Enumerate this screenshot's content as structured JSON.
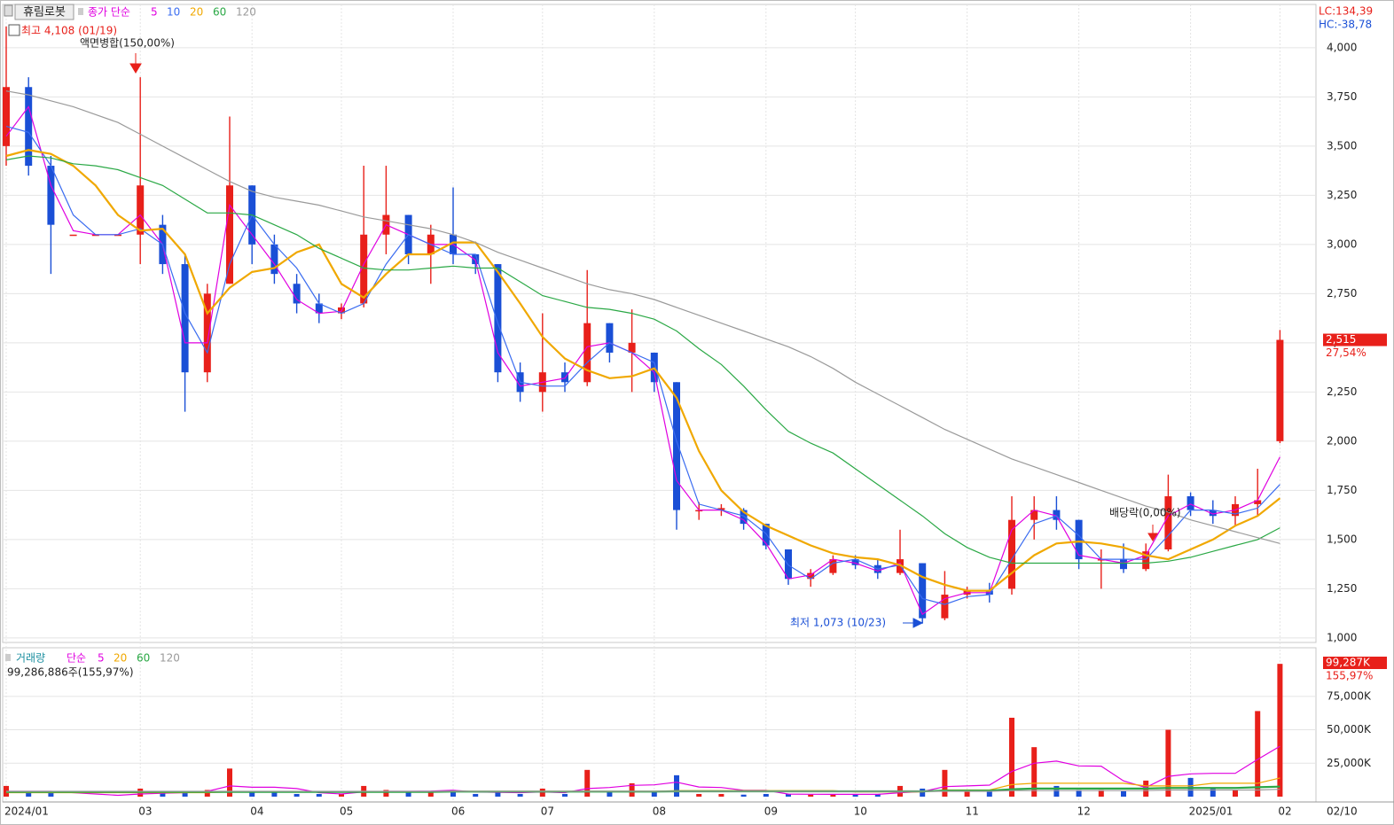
{
  "chart_data": [
    {
      "type": "candlestick",
      "title": "휴림로봇",
      "legend_label": "종가 단순",
      "open": [
        3500,
        3800,
        3400,
        3050,
        3050,
        3050,
        3050,
        3100,
        2900,
        2350,
        2800,
        3300,
        3000,
        2800,
        2700,
        2650,
        2700,
        3050,
        3150,
        2950,
        3050,
        2950,
        2900,
        2350,
        2250,
        2350,
        2300,
        2600,
        2450,
        2450,
        2300,
        1650,
        1650,
        1650,
        1580,
        1450,
        1300,
        1330,
        1400,
        1370,
        1330,
        1380,
        1100,
        1220,
        1240,
        1250,
        1600,
        1650,
        1600,
        1400,
        1400,
        1350,
        1450,
        1720,
        1650,
        1620,
        1680,
        2000
      ],
      "high": [
        4108,
        3850,
        3450,
        3050,
        3050,
        3050,
        3850,
        3150,
        2950,
        2800,
        3650,
        3300,
        3050,
        2850,
        2750,
        2700,
        3400,
        3400,
        3150,
        3100,
        3290,
        2950,
        2900,
        2400,
        2650,
        2400,
        2870,
        2600,
        2670,
        2450,
        2300,
        1690,
        1680,
        1660,
        1580,
        1450,
        1350,
        1420,
        1420,
        1400,
        1550,
        1380,
        1340,
        1260,
        1280,
        1720,
        1720,
        1720,
        1600,
        1450,
        1480,
        1480,
        1830,
        1740,
        1700,
        1720,
        1860,
        2565
      ],
      "low": [
        3400,
        3350,
        2850,
        3050,
        3050,
        3050,
        2900,
        2850,
        2150,
        2300,
        2800,
        2900,
        2800,
        2650,
        2600,
        2620,
        2680,
        2950,
        2900,
        2800,
        2900,
        2850,
        2300,
        2200,
        2150,
        2250,
        2280,
        2400,
        2250,
        2250,
        1550,
        1600,
        1620,
        1550,
        1450,
        1270,
        1260,
        1320,
        1350,
        1300,
        1320,
        1073,
        1090,
        1200,
        1180,
        1220,
        1500,
        1550,
        1350,
        1250,
        1330,
        1340,
        1440,
        1620,
        1580,
        1570,
        1620,
        1990
      ],
      "close": [
        3800,
        3400,
        3100,
        3050,
        3050,
        3050,
        3300,
        2900,
        2350,
        2750,
        3300,
        3000,
        2850,
        2700,
        2650,
        2680,
        3050,
        3150,
        2950,
        3050,
        2950,
        2900,
        2350,
        2250,
        2350,
        2300,
        2600,
        2450,
        2500,
        2300,
        1650,
        1650,
        1660,
        1580,
        1470,
        1300,
        1330,
        1400,
        1370,
        1330,
        1400,
        1100,
        1220,
        1240,
        1220,
        1600,
        1650,
        1600,
        1400,
        1400,
        1350,
        1440,
        1720,
        1650,
        1620,
        1680,
        1700,
        2515
      ],
      "up_color": "#e8201a",
      "down_color": "#1a4fd6",
      "series": [
        {
          "name": "5",
          "color": "#e000e0",
          "values": [
            3550,
            3700,
            3300,
            3070,
            3050,
            3050,
            3150,
            3000,
            2500,
            2500,
            3200,
            3050,
            2900,
            2720,
            2650,
            2660,
            2900,
            3100,
            3050,
            3000,
            3000,
            2920,
            2450,
            2280,
            2300,
            2320,
            2480,
            2500,
            2450,
            2350,
            1800,
            1650,
            1650,
            1600,
            1480,
            1300,
            1320,
            1400,
            1380,
            1340,
            1380,
            1120,
            1200,
            1230,
            1230,
            1550,
            1650,
            1620,
            1420,
            1400,
            1380,
            1420,
            1620,
            1680,
            1630,
            1650,
            1700,
            1920
          ]
        },
        {
          "name": "10",
          "color": "#3a6cf0",
          "values": [
            3600,
            3570,
            3400,
            3150,
            3050,
            3050,
            3080,
            3000,
            2650,
            2450,
            2900,
            3150,
            3000,
            2880,
            2700,
            2650,
            2700,
            2900,
            3050,
            3000,
            2950,
            2950,
            2600,
            2300,
            2280,
            2280,
            2400,
            2500,
            2450,
            2400,
            2000,
            1680,
            1650,
            1620,
            1530,
            1370,
            1300,
            1380,
            1400,
            1350,
            1370,
            1200,
            1170,
            1210,
            1220,
            1400,
            1580,
            1620,
            1520,
            1400,
            1400,
            1400,
            1520,
            1650,
            1650,
            1630,
            1660,
            1780
          ]
        },
        {
          "name": "20",
          "color": "#f0a800",
          "values": [
            3450,
            3480,
            3460,
            3400,
            3300,
            3150,
            3070,
            3080,
            2950,
            2650,
            2780,
            2860,
            2880,
            2960,
            3000,
            2800,
            2730,
            2850,
            2950,
            2950,
            3010,
            3010,
            2860,
            2700,
            2530,
            2420,
            2360,
            2320,
            2330,
            2370,
            2220,
            1950,
            1750,
            1640,
            1570,
            1520,
            1470,
            1430,
            1410,
            1400,
            1370,
            1310,
            1270,
            1240,
            1240,
            1330,
            1420,
            1480,
            1490,
            1480,
            1460,
            1420,
            1400,
            1450,
            1500,
            1570,
            1620,
            1710
          ]
        },
        {
          "name": "60",
          "color": "#2aa845",
          "values": [
            3430,
            3450,
            3440,
            3410,
            3400,
            3380,
            3340,
            3300,
            3230,
            3160,
            3160,
            3150,
            3100,
            3050,
            2980,
            2930,
            2880,
            2870,
            2870,
            2880,
            2890,
            2880,
            2880,
            2810,
            2740,
            2710,
            2680,
            2670,
            2650,
            2620,
            2560,
            2470,
            2390,
            2280,
            2160,
            2050,
            1990,
            1940,
            1860,
            1780,
            1700,
            1620,
            1530,
            1460,
            1410,
            1380,
            1380,
            1380,
            1380,
            1380,
            1380,
            1380,
            1390,
            1410,
            1440,
            1470,
            1500,
            1560
          ]
        },
        {
          "name": "120",
          "color": "#9a9a9a",
          "values": [
            3780,
            3760,
            3730,
            3700,
            3660,
            3620,
            3560,
            3500,
            3440,
            3380,
            3320,
            3270,
            3240,
            3220,
            3200,
            3170,
            3140,
            3120,
            3100,
            3080,
            3050,
            3010,
            2960,
            2920,
            2880,
            2840,
            2800,
            2770,
            2750,
            2720,
            2680,
            2640,
            2600,
            2560,
            2520,
            2480,
            2430,
            2370,
            2300,
            2240,
            2180,
            2120,
            2060,
            2010,
            1960,
            1910,
            1870,
            1830,
            1790,
            1750,
            1710,
            1670,
            1640,
            1600,
            1570,
            1540,
            1510,
            1480
          ]
        }
      ],
      "ylim": [
        986,
        4220
      ],
      "yticks": [
        {
          "value": 1000,
          "label": "1,000"
        },
        {
          "value": 1250,
          "label": "1,250"
        },
        {
          "value": 1500,
          "label": "1,500"
        },
        {
          "value": 1750,
          "label": "1,750"
        },
        {
          "value": 2000,
          "label": "2,000"
        },
        {
          "value": 2250,
          "label": "2,250"
        },
        {
          "value": 2500,
          "label": "2,500"
        },
        {
          "value": 2750,
          "label": "2,750"
        },
        {
          "value": 3000,
          "label": "3,000"
        },
        {
          "value": 3250,
          "label": "3,250"
        },
        {
          "value": 3500,
          "label": "3,500"
        },
        {
          "value": 3750,
          "label": "3,750"
        },
        {
          "value": 4000,
          "label": "4,000"
        }
      ],
      "grid": true,
      "annotations": [
        "최고 4,108 (01/19)",
        "액면병합(150,00%)",
        "배당락(0,00%)",
        "최저 1,073 (10/23)"
      ],
      "indicators": [
        "LC:134,39",
        "HC:-38,78"
      ],
      "last_value_label": "2,515",
      "change_label": "27,54%"
    },
    {
      "type": "bar",
      "title": "거래량",
      "legend_label": "단순",
      "categories": [
        "2024/01",
        null,
        null,
        null,
        null,
        null,
        "03",
        null,
        null,
        null,
        null,
        "04",
        null,
        null,
        null,
        "05",
        null,
        null,
        null,
        null,
        "06",
        null,
        null,
        null,
        "07",
        null,
        null,
        null,
        null,
        "08",
        null,
        null,
        null,
        null,
        "09",
        null,
        null,
        null,
        "10",
        null,
        null,
        null,
        null,
        "11",
        null,
        null,
        null,
        null,
        "12",
        null,
        null,
        null,
        null,
        "2025/01",
        null,
        null,
        null,
        "02"
      ],
      "x_end_label": "02/10",
      "values": [
        8000,
        3000,
        3000,
        0,
        0,
        0,
        6000,
        3000,
        4000,
        5000,
        21000,
        4000,
        3000,
        2000,
        2000,
        2000,
        8000,
        5000,
        3000,
        3000,
        5000,
        2000,
        3000,
        2000,
        6000,
        2000,
        20000,
        4000,
        10000,
        4000,
        16000,
        2000,
        2000,
        1500,
        2000,
        2000,
        1500,
        1500,
        1500,
        2000,
        8000,
        6000,
        20000,
        4000,
        5000,
        59000,
        37000,
        8000,
        5000,
        5000,
        4000,
        12000,
        50000,
        14000,
        6000,
        5000,
        64000,
        99287
      ],
      "series": [
        {
          "name": "5",
          "color": "#e000e0",
          "values": [
            4000,
            4000,
            4000,
            3000,
            2000,
            1000,
            2000,
            2500,
            3000,
            4000,
            8000,
            7000,
            7000,
            6000,
            3000,
            2000,
            3500,
            4000,
            4000,
            4200,
            4800,
            3600,
            3200,
            3000,
            3600,
            3000,
            6000,
            6800,
            8400,
            8800,
            10800,
            7200,
            6800,
            4800,
            4700,
            1900,
            1800,
            1700,
            1700,
            1700,
            2900,
            3800,
            7500,
            8000,
            8600,
            18800,
            25000,
            26600,
            23000,
            22800,
            11800,
            6800,
            15200,
            17000,
            17400,
            17400,
            27800,
            37700
          ]
        },
        {
          "name": "20",
          "color": "#f0a800",
          "values": [
            3000,
            3000,
            3000,
            3000,
            3000,
            3000,
            3000,
            3000,
            3000,
            3000,
            3500,
            3500,
            3500,
            3500,
            3500,
            3500,
            3500,
            3500,
            3500,
            3500,
            4000,
            4000,
            4000,
            4000,
            4000,
            4000,
            4000,
            4000,
            4000,
            4000,
            4500,
            4500,
            4500,
            4500,
            4500,
            4500,
            4500,
            4500,
            3500,
            3500,
            3500,
            3500,
            5000,
            5000,
            5000,
            9000,
            10000,
            10000,
            10000,
            10000,
            10000,
            8000,
            8000,
            8000,
            10000,
            10000,
            10000,
            14000
          ]
        },
        {
          "name": "60",
          "color": "#2aa845",
          "values": [
            3500,
            3500,
            3500,
            3500,
            3500,
            3500,
            3500,
            3500,
            3500,
            3500,
            3500,
            3500,
            3500,
            3500,
            3500,
            3500,
            3500,
            3500,
            3500,
            3500,
            3800,
            3800,
            3800,
            3800,
            3800,
            3800,
            3800,
            3800,
            3800,
            3800,
            4000,
            4000,
            4000,
            4000,
            4000,
            4000,
            4000,
            4000,
            4000,
            4000,
            4000,
            4000,
            4500,
            4500,
            4500,
            5500,
            6000,
            6000,
            6000,
            6000,
            6000,
            6000,
            6500,
            6500,
            6500,
            6500,
            7000,
            7500
          ]
        },
        {
          "name": "120",
          "color": "#9a9a9a",
          "values": [
            4000,
            4000,
            4000,
            4000,
            4000,
            4000,
            4000,
            4000,
            4000,
            4000,
            4000,
            4000,
            4000,
            4000,
            4000,
            4000,
            4000,
            4000,
            4000,
            4000,
            4000,
            4000,
            4000,
            4000,
            4000,
            4000,
            4000,
            4000,
            4000,
            4000,
            4000,
            4000,
            4000,
            4000,
            4000,
            4000,
            4000,
            4000,
            4000,
            4000,
            4000,
            4000,
            4000,
            4000,
            4000,
            4500,
            4500,
            4500,
            4500,
            4500,
            4500,
            4500,
            5000,
            5000,
            5000,
            5000,
            5000,
            5500
          ]
        }
      ],
      "ylim": [
        0,
        110000
      ],
      "yticks": [
        {
          "value": 25000,
          "label": "25,000K"
        },
        {
          "value": 50000,
          "label": "50,000K"
        },
        {
          "value": 75000,
          "label": "75,000K"
        }
      ],
      "grid": true,
      "total_label": "99,286,886주(155,97%)",
      "last_value_label": "99,287K",
      "change_label": "155,97%"
    }
  ]
}
